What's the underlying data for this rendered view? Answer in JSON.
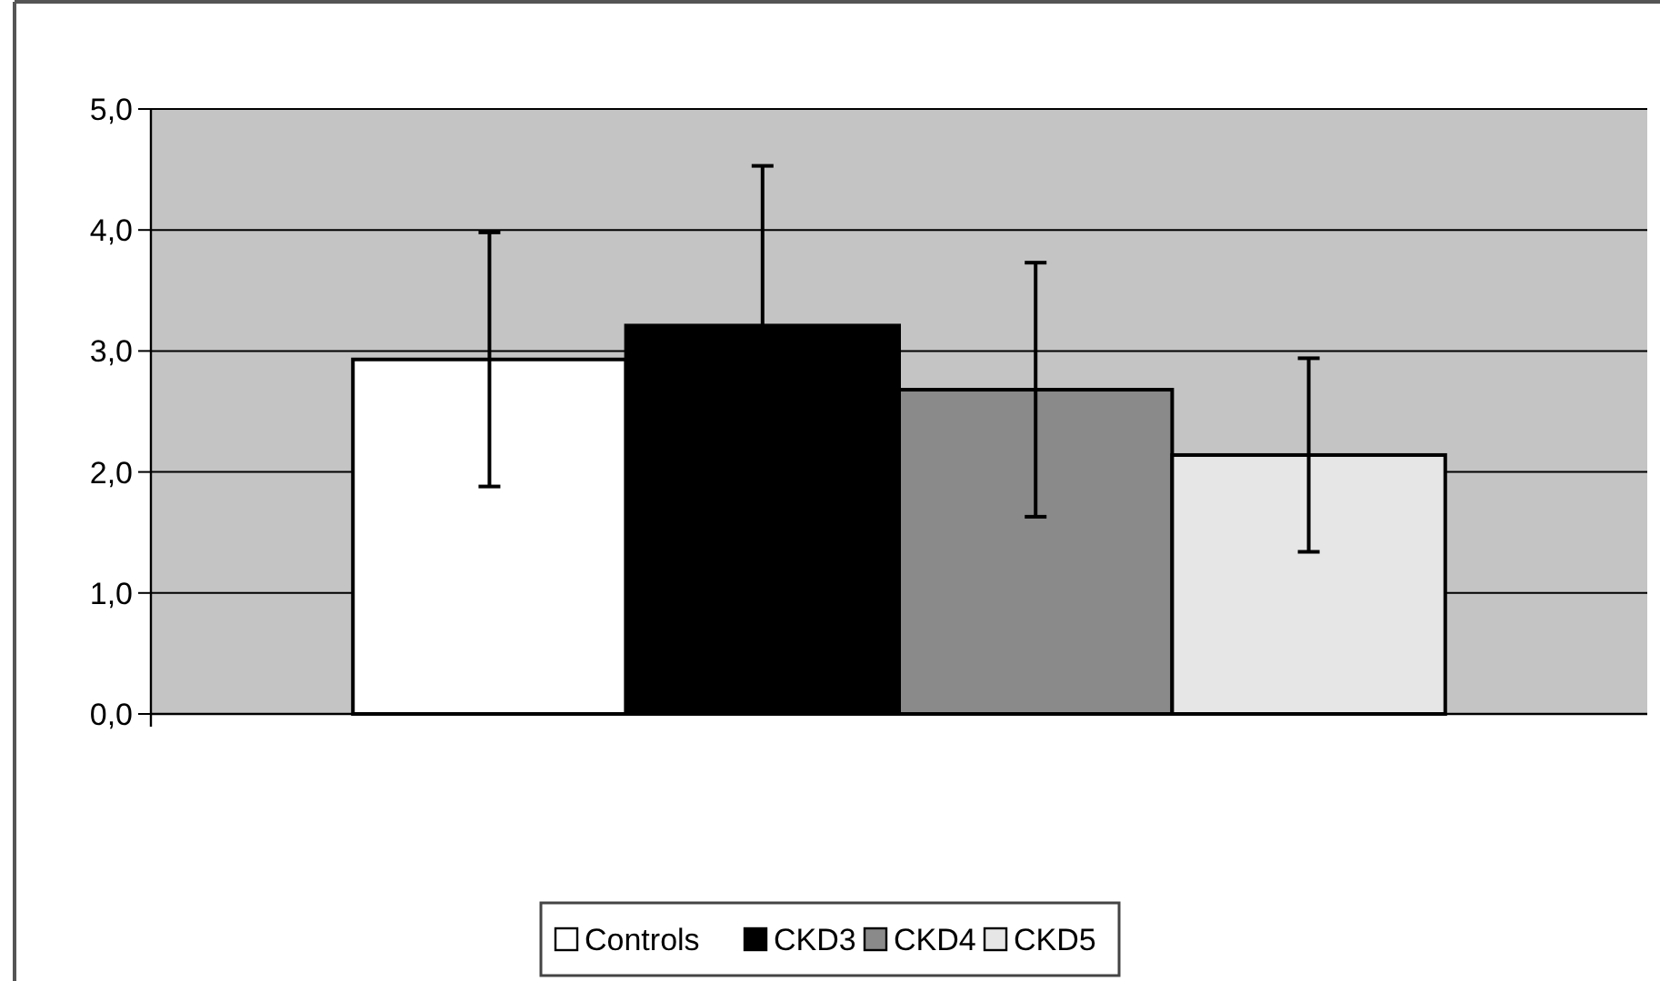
{
  "chart_data": {
    "type": "bar",
    "categories": [
      null
    ],
    "series": [
      {
        "name": "Controls",
        "color": "#ffffff",
        "values": [
          2.93
        ],
        "errors": [
          1.05
        ]
      },
      {
        "name": "CKD3",
        "color": "#000000",
        "values": [
          3.21
        ],
        "errors": [
          1.32
        ]
      },
      {
        "name": "CKD4",
        "color": "#8a8a8a",
        "values": [
          2.68
        ],
        "errors": [
          1.05
        ]
      },
      {
        "name": "CKD5",
        "color": "#e6e6e6",
        "values": [
          2.14
        ],
        "errors": [
          0.8
        ]
      }
    ],
    "ylim": [
      0,
      5
    ],
    "yticks": [
      {
        "value": 0,
        "label": "0,0"
      },
      {
        "value": 1,
        "label": "1,0"
      },
      {
        "value": 2,
        "label": "2,0"
      },
      {
        "value": 3,
        "label": "3,0"
      },
      {
        "value": 4,
        "label": "4,0"
      },
      {
        "value": 5,
        "label": "5,0"
      }
    ],
    "grid": "y",
    "legend": "bottom"
  }
}
